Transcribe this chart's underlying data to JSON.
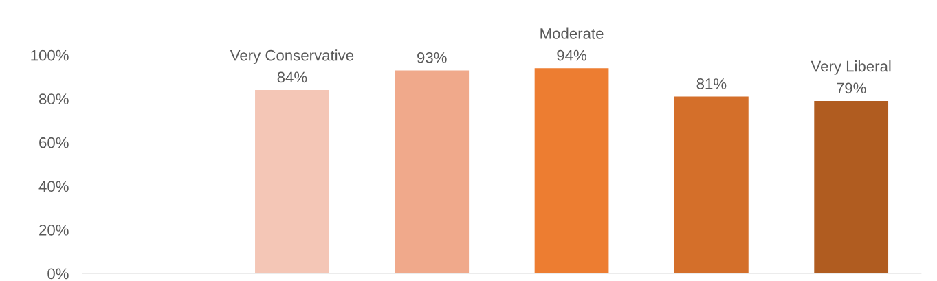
{
  "chart_data": {
    "type": "bar",
    "categories": [
      null,
      "Very Conservative",
      null,
      "Moderate",
      null,
      "Very Liberal"
    ],
    "values": [
      null,
      84,
      93,
      94,
      81,
      79
    ],
    "colors": [
      "#f4c6b6",
      "#f4c6b6",
      "#f0a98b",
      "#ed7d31",
      "#d46f2a",
      "#b05c20"
    ],
    "value_labels": [
      null,
      "84%",
      "93%",
      "94%",
      "81%",
      "79%"
    ],
    "ylim": [
      0,
      100
    ],
    "yticks": [
      {
        "value": 0,
        "label": "0%"
      },
      {
        "value": 20,
        "label": "20%"
      },
      {
        "value": 40,
        "label": "40%"
      },
      {
        "value": 60,
        "label": "60%"
      },
      {
        "value": 80,
        "label": "80%"
      },
      {
        "value": 100,
        "label": "100%"
      }
    ],
    "grid": false,
    "legend": false
  }
}
